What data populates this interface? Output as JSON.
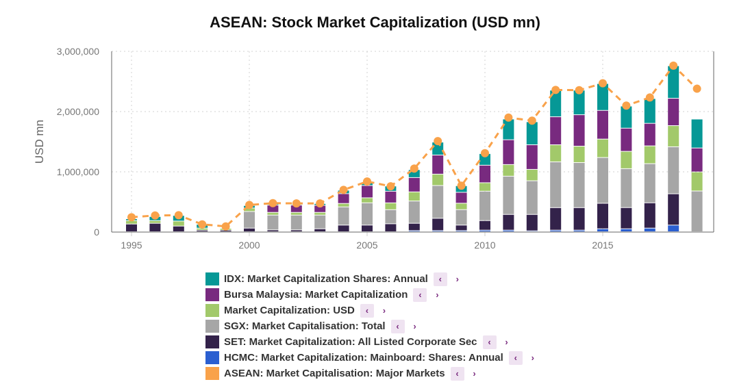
{
  "chart_data": {
    "type": "bar",
    "stacked": true,
    "title": "ASEAN: Stock Market Capitalization (USD mn)",
    "ylabel": "USD mn",
    "xlabel": "",
    "ylim": [
      0,
      3000000
    ],
    "yticks": [
      "0",
      "1,000,000",
      "2,000,000",
      "3,000,000"
    ],
    "xticks": [
      "1995",
      "2000",
      "2005",
      "2010",
      "2015"
    ],
    "grid": true,
    "legend_position": "bottom",
    "x": [
      1995,
      1996,
      1997,
      1998,
      1999,
      2000,
      2001,
      2002,
      2003,
      2004,
      2005,
      2006,
      2007,
      2008,
      2009,
      2010,
      2011,
      2012,
      2013,
      2014,
      2015,
      2016,
      2017,
      2018,
      2019
    ],
    "series": [
      {
        "name": "HCMC: Market Capitalization: Mainboard: Shares: Annual",
        "color": "#2b5fd0",
        "kind": "bar",
        "values": [
          0,
          0,
          0,
          0,
          0,
          0,
          0,
          0,
          0,
          0,
          0,
          0,
          19000,
          19000,
          19000,
          26000,
          26000,
          15000,
          26000,
          26000,
          49000,
          49000,
          60000,
          110000,
          0
        ]
      },
      {
        "name": "SET: Market Capitalization: All Listed Corporate Sec",
        "color": "#33224a",
        "kind": "bar",
        "values": [
          128000,
          140000,
          94000,
          26000,
          26000,
          60000,
          30000,
          30000,
          49000,
          110000,
          110000,
          132000,
          121000,
          204000,
          91000,
          159000,
          261000,
          272000,
          374000,
          374000,
          423000,
          352000,
          420000,
          520000,
          0
        ]
      },
      {
        "name": "SGX: Market Capitalisation: Total",
        "color": "#a6a6a6",
        "kind": "bar",
        "values": [
          0,
          0,
          0,
          0,
          0,
          276000,
          246000,
          246000,
          227000,
          302000,
          370000,
          234000,
          370000,
          544000,
          257000,
          488000,
          635000,
          559000,
          760000,
          748000,
          760000,
          646000,
          650000,
          780000,
          676000
        ]
      },
      {
        "name": "Market Capitalization: USD",
        "color": "#a2c96a",
        "kind": "bar",
        "values": [
          57000,
          45000,
          83000,
          34000,
          30000,
          57000,
          45000,
          45000,
          45000,
          57000,
          83000,
          113000,
          151000,
          189000,
          106000,
          140000,
          193000,
          189000,
          283000,
          272000,
          306000,
          287000,
          295000,
          351000,
          317000
        ]
      },
      {
        "name": "Bursa Malaysia: Market Capitalization",
        "color": "#782a7f",
        "kind": "bar",
        "values": [
          0,
          0,
          0,
          0,
          0,
          0,
          121000,
          121000,
          117000,
          163000,
          204000,
          193000,
          238000,
          317000,
          181000,
          291000,
          412000,
          408000,
          465000,
          522000,
          476000,
          385000,
          374000,
          454000,
          397000
        ]
      },
      {
        "name": "IDX: Market Capitalization Shares: Annual",
        "color": "#069896",
        "kind": "bar",
        "values": [
          30000,
          68000,
          94000,
          64000,
          0,
          42000,
          23000,
          15000,
          30000,
          57000,
          53000,
          87000,
          132000,
          215000,
          110000,
          193000,
          344000,
          382000,
          442000,
          408000,
          446000,
          367000,
          412000,
          540000,
          480000
        ]
      },
      {
        "name": "ASEAN: Market Capitalisation: Major Markets",
        "color": "#f9a24a",
        "kind": "line",
        "values": [
          246000,
          276000,
          280000,
          128000,
          94000,
          450000,
          480000,
          476000,
          476000,
          700000,
          840000,
          760000,
          1054000,
          1510000,
          770000,
          1310000,
          1900000,
          1850000,
          2360000,
          2355000,
          2470000,
          2100000,
          2234000,
          2763000,
          2380000
        ]
      }
    ]
  },
  "legend": {
    "items": [
      {
        "label": "IDX: Market Capitalization Shares: Annual",
        "color": "#069896"
      },
      {
        "label": "Bursa Malaysia: Market Capitalization",
        "color": "#782a7f"
      },
      {
        "label": "Market Capitalization: USD",
        "color": "#a2c96a"
      },
      {
        "label": "SGX: Market Capitalisation: Total",
        "color": "#a6a6a6"
      },
      {
        "label": "SET: Market Capitalization: All Listed Corporate Sec",
        "color": "#33224a"
      },
      {
        "label": "HCMC: Market Capitalization: Mainboard: Shares: Annual",
        "color": "#2b5fd0"
      },
      {
        "label": "ASEAN: Market Capitalisation: Major Markets",
        "color": "#f9a24a"
      }
    ],
    "prev_icon": "‹",
    "next_icon": "›"
  }
}
